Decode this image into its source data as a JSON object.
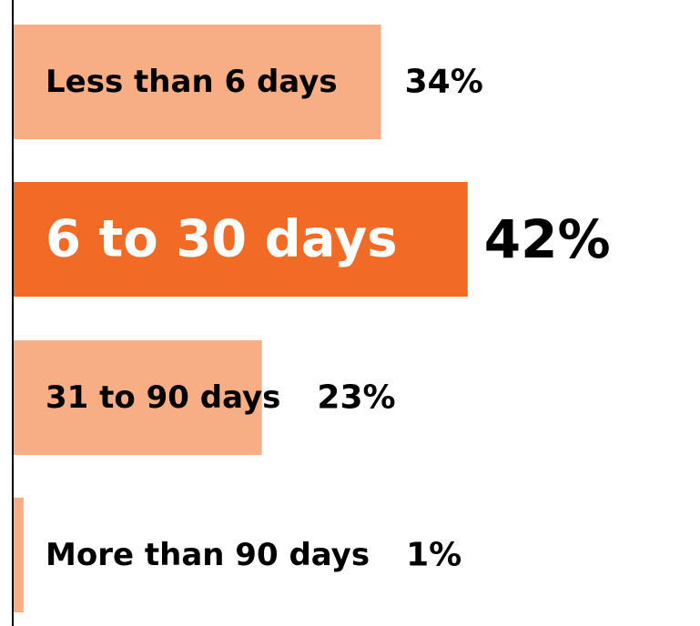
{
  "chart_data": {
    "type": "bar",
    "orientation": "horizontal",
    "categories": [
      "Less than 6 days",
      "6 to 30 days",
      "31 to 90 days",
      "More than 90 days"
    ],
    "values": [
      34,
      42,
      23,
      1
    ],
    "value_labels": [
      "34%",
      "42%",
      "23%",
      "1%"
    ],
    "unit": "%",
    "xlim": [
      0,
      50
    ],
    "highlight_index": 1,
    "title": "",
    "xlabel": "",
    "ylabel": "",
    "grid": false,
    "colors": {
      "bar": "#F8AE84",
      "highlight": "#F26B26",
      "text": "#000000",
      "highlight_text": "#FFFFFF",
      "axis": "#000000"
    }
  }
}
